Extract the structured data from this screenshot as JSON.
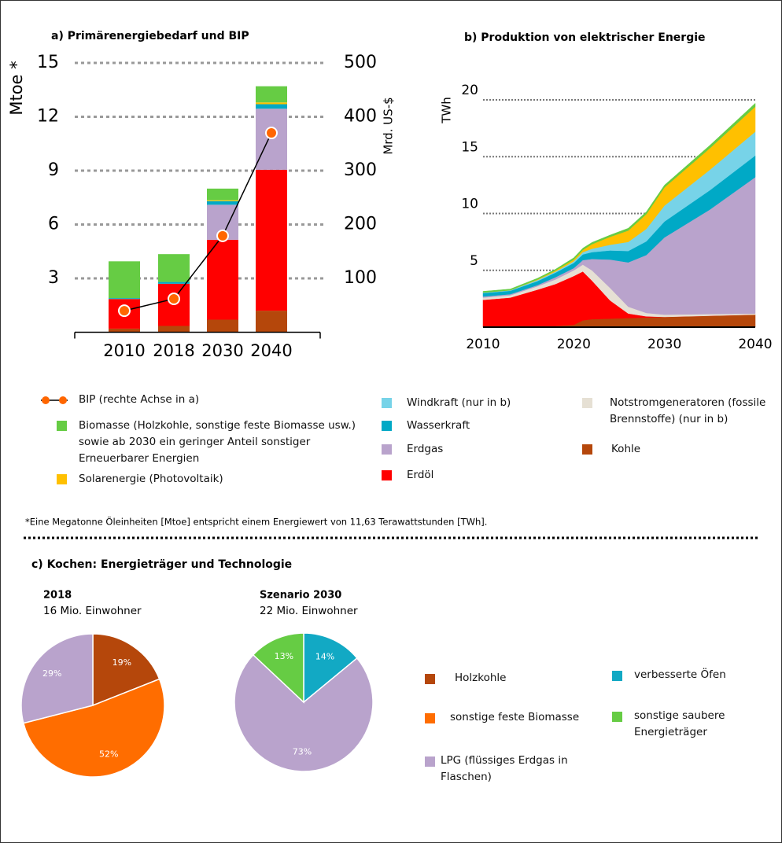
{
  "chart_data": [
    {
      "type": "bar",
      "stacked": true,
      "title": "a) Primärenergiebedarf und BIP",
      "ylabel": "Mtoe *",
      "y2label": "Mrd. US-$",
      "categories": [
        "2010",
        "2018",
        "2030",
        "2040"
      ],
      "ylim": [
        0,
        15
      ],
      "yticks": [
        3,
        6,
        9,
        12,
        15
      ],
      "y2lim": [
        0,
        500
      ],
      "y2ticks": [
        100,
        200,
        300,
        400,
        500
      ],
      "grid": true,
      "series": [
        {
          "name": "Kohle",
          "color": "#b5470b",
          "values": [
            0.2,
            0.35,
            0.7,
            1.2
          ]
        },
        {
          "name": "Erdöl",
          "color": "#ff0000",
          "values": [
            1.65,
            2.35,
            4.45,
            7.85
          ]
        },
        {
          "name": "Erdgas",
          "color": "#b9a3cc",
          "values": [
            0,
            0,
            1.95,
            3.4
          ]
        },
        {
          "name": "Wasserkraft",
          "color": "#00a9c6",
          "values": [
            0.05,
            0.1,
            0.2,
            0.25
          ]
        },
        {
          "name": "Solarenergie (Photovoltaik)",
          "color": "#ffc000",
          "values": [
            0,
            0,
            0.05,
            0.1
          ]
        },
        {
          "name": "Biomasse (Holzkohle, sonstige feste Biomasse usw.) sowie ab 2030 ein geringer Anteil sonstiger Erneuerbarer Energien",
          "color": "#66cc44",
          "values": [
            2.05,
            1.55,
            0.65,
            0.9
          ]
        },
        {
          "name": "BIP (rechte Achse in a)",
          "type": "line",
          "axis": "y2",
          "color": "#ff6600",
          "values": [
            40,
            62,
            179,
            370
          ]
        }
      ]
    },
    {
      "type": "area",
      "stacked": true,
      "title": "b) Produktion von elektrischer Energie",
      "ylabel": "TWh",
      "x": [
        2010,
        2013,
        2016,
        2018,
        2020,
        2021,
        2022,
        2024,
        2026,
        2028,
        2030,
        2035,
        2040
      ],
      "xlim": [
        2010,
        2040
      ],
      "xticks": [
        2010,
        2020,
        2030,
        2040
      ],
      "ylim": [
        0,
        20
      ],
      "yticks": [
        5,
        10,
        15,
        20
      ],
      "grid": true,
      "series": [
        {
          "name": "Kohle",
          "color": "#b5470b",
          "values": [
            0.1,
            0.1,
            0.1,
            0.1,
            0.2,
            0.6,
            0.7,
            0.75,
            0.8,
            0.85,
            0.9,
            1.0,
            1.1
          ]
        },
        {
          "name": "Erdöl",
          "color": "#ff0000",
          "values": [
            2.3,
            2.5,
            3.2,
            3.7,
            4.3,
            4.3,
            3.4,
            1.6,
            0.4,
            0.1,
            0,
            0,
            0
          ]
        },
        {
          "name": "Notstromgeneratoren (fossile Brennstoffe) (nur in b)",
          "color": "#e6e0d4",
          "values": [
            0.2,
            0.2,
            0.3,
            0.4,
            0.5,
            0.6,
            0.9,
            1.1,
            0.6,
            0.3,
            0.2,
            0.15,
            0.1
          ]
        },
        {
          "name": "Erdgas",
          "color": "#b9a3cc",
          "values": [
            0.1,
            0.1,
            0.1,
            0.2,
            0.2,
            0.4,
            1.0,
            2.5,
            3.9,
            5.1,
            6.8,
            9.2,
            12.0
          ]
        },
        {
          "name": "Wasserkraft",
          "color": "#00a9c6",
          "values": [
            0.3,
            0.3,
            0.35,
            0.4,
            0.45,
            0.5,
            0.6,
            0.8,
            1.0,
            1.2,
            1.4,
            1.7,
            1.9
          ]
        },
        {
          "name": "Windkraft (nur in b)",
          "color": "#77d3e8",
          "values": [
            0.05,
            0.05,
            0.1,
            0.1,
            0.15,
            0.2,
            0.3,
            0.5,
            0.8,
            1.1,
            1.4,
            1.8,
            2.1
          ]
        },
        {
          "name": "Solarenergie (Photovoltaik)",
          "color": "#ffc000",
          "values": [
            0,
            0,
            0.05,
            0.1,
            0.15,
            0.2,
            0.4,
            0.7,
            1.0,
            1.3,
            1.6,
            1.9,
            2.2
          ]
        },
        {
          "name": "Biomasse",
          "color": "#66cc44",
          "values": [
            0.1,
            0.1,
            0.1,
            0.1,
            0.15,
            0.15,
            0.15,
            0.15,
            0.2,
            0.2,
            0.2,
            0.25,
            0.3
          ]
        }
      ]
    },
    {
      "type": "pie",
      "title": "2018",
      "subtitle": "16 Mio. Einwohner",
      "categories": [
        "Holzkohle",
        "sonstige feste Biomasse",
        "LPG (flüssiges Erdgas in Flaschen)"
      ],
      "values": [
        19,
        52,
        29
      ],
      "value_labels": [
        "19%",
        "52%",
        "29%"
      ],
      "colors": [
        "#b5470b",
        "#ff6d00",
        "#b9a3cc"
      ]
    },
    {
      "type": "pie",
      "title": "Szenario 2030",
      "subtitle": "22 Mio. Einwohner",
      "categories": [
        "verbesserte Öfen",
        "LPG (flüssiges Erdgas in Flaschen)",
        "sonstige saubere Energieträger"
      ],
      "values": [
        14,
        73,
        13
      ],
      "value_labels": [
        "14%",
        "73%",
        "13%"
      ],
      "colors": [
        "#12a9c4",
        "#b9a3cc",
        "#66cc44"
      ]
    }
  ],
  "footnote": "*Eine Megatonne Öleinheiten [Mtoe] entspricht einem Energiewert von 11,63 Terawattstunden [TWh].",
  "cooking_title": "c) Kochen: Energieträger und Technologie"
}
